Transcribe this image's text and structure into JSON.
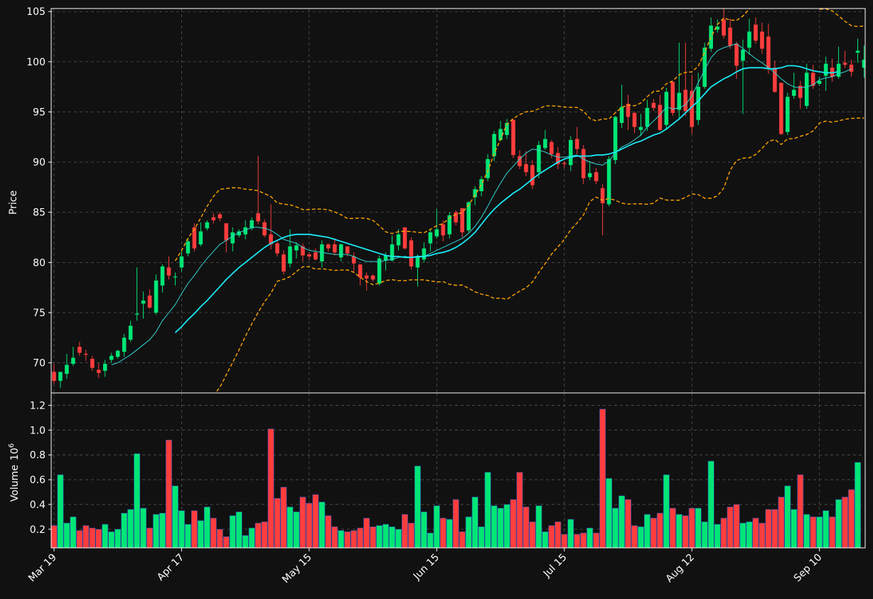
{
  "colors": {
    "background": "#111111",
    "up": "#00e676",
    "down": "#ff3d3d",
    "grid": "#555555",
    "axis": "#ffffff",
    "ma_fast": "#34d6d6",
    "ma_slow": "#19e8f5",
    "bollinger": "#ffa500"
  },
  "chart_data": [
    {
      "type": "candlestick",
      "ylabel": "Price",
      "ylim": [
        67,
        105.3
      ],
      "yticks": [
        70,
        75,
        80,
        85,
        90,
        95,
        100,
        105
      ],
      "xticks": [
        "Mar 19",
        "Apr 17",
        "May 15",
        "Jun 15",
        "Jul 15",
        "Aug 12",
        "Sep 10"
      ],
      "xtick_index": [
        0,
        20,
        40,
        60,
        80,
        100,
        120
      ],
      "grid": true,
      "legend": "none",
      "series_info": [
        "OHLC candles",
        "fast moving average",
        "slow moving average",
        "Bollinger upper band",
        "Bollinger lower band"
      ],
      "close": [
        68.2,
        69.1,
        69.8,
        70.5,
        71.0,
        70.8,
        69.5,
        69.0,
        69.9,
        70.7,
        71.2,
        72.5,
        73.7,
        74.9,
        76.2,
        75.5,
        78.2,
        79.6,
        78.7,
        78.6,
        80.6,
        82.1,
        81.4,
        83.1,
        84.0,
        84.2,
        84.4,
        82.2,
        83.0,
        83.1,
        83.5,
        84.2,
        84.1,
        82.7,
        81.8,
        80.9,
        79.1,
        81.6,
        81.7,
        80.7,
        80.6,
        80.3,
        81.8,
        81.4,
        81.0,
        81.8,
        80.9,
        79.9,
        78.5,
        78.4,
        78.3,
        80.4,
        80.7,
        81.8,
        82.8,
        81.4,
        79.6,
        80.6,
        81.4,
        83.0,
        83.3,
        82.7,
        84.7,
        84.0,
        83.0,
        86.0,
        87.3,
        88.3,
        90.3,
        92.8,
        93.3,
        93.9,
        90.7,
        89.6,
        89.0,
        87.7,
        91.7,
        92.3,
        90.8,
        89.8,
        89.8,
        92.2,
        91.3,
        88.4,
        88.9,
        88.1,
        85.9,
        90.3,
        94.5,
        95.5,
        94.5,
        93.5,
        93.5,
        95.4,
        95.4,
        93.2,
        97.0,
        94.9,
        96.9,
        95.1,
        93.5,
        97.5,
        101.4,
        103.6,
        103.5,
        102.6,
        101.6,
        99.6,
        101.2,
        103.0,
        102.1,
        101.3,
        99.3,
        97.0,
        92.8,
        96.5,
        97.2,
        96.4,
        98.9,
        97.6,
        98.1,
        99.8,
        98.5,
        99.8,
        99.7,
        99.0,
        101.1,
        100.2
      ],
      "open": [
        69.1,
        68.2,
        68.9,
        69.9,
        71.6,
        70.9,
        70.4,
        69.3,
        69.2,
        70.3,
        70.6,
        71.1,
        72.3,
        74.8,
        75.9,
        76.7,
        75.0,
        77.7,
        79.5,
        78.6,
        79.5,
        80.9,
        83.5,
        81.8,
        83.4,
        84.5,
        84.8,
        83.9,
        81.9,
        82.7,
        82.8,
        83.4,
        84.9,
        84.0,
        82.8,
        81.9,
        80.8,
        79.9,
        81.2,
        81.6,
        80.8,
        81.0,
        80.1,
        81.8,
        81.8,
        80.5,
        81.6,
        80.6,
        79.8,
        78.7,
        78.7,
        77.9,
        80.2,
        80.2,
        81.7,
        83.5,
        82.2,
        79.5,
        80.3,
        81.9,
        82.6,
        83.8,
        82.8,
        85.0,
        85.4,
        83.2,
        86.5,
        87.1,
        88.4,
        90.6,
        92.2,
        92.7,
        94.2,
        90.6,
        89.8,
        89.7,
        89.0,
        91.4,
        92.0,
        90.9,
        89.9,
        89.7,
        92.3,
        91.3,
        88.5,
        89.0,
        87.4,
        85.8,
        90.2,
        93.9,
        95.8,
        94.9,
        93.2,
        93.5,
        95.9,
        95.7,
        93.7,
        98.0,
        95.2,
        97.2,
        97.1,
        94.2,
        97.5,
        101.3,
        103.2,
        104.2,
        103.4,
        101.8,
        100.1,
        101.4,
        103.7,
        103.0,
        102.5,
        99.4,
        97.9,
        93.0,
        96.6,
        97.6,
        95.6,
        98.9,
        97.8,
        98.6,
        99.4,
        98.5,
        99.9,
        99.7,
        100.9,
        99.4
      ],
      "high": [
        69.9,
        69.1,
        70.9,
        71.6,
        72.1,
        71.3,
        70.7,
        70.0,
        70.3,
        71.0,
        71.3,
        72.9,
        74.2,
        79.5,
        77.1,
        77.3,
        78.8,
        79.8,
        80.6,
        79.0,
        81.1,
        82.4,
        83.9,
        84.0,
        84.2,
        84.9,
        85.0,
        83.9,
        83.5,
        83.3,
        84.2,
        84.5,
        90.6,
        84.3,
        85.8,
        82.1,
        81.2,
        83.3,
        82.0,
        81.9,
        81.0,
        81.4,
        82.2,
        81.9,
        82.4,
        81.9,
        81.6,
        81.0,
        79.8,
        79.0,
        78.8,
        80.7,
        81.0,
        82.7,
        83.3,
        83.5,
        82.5,
        80.8,
        82.0,
        83.3,
        85.3,
        84.2,
        85.0,
        85.2,
        85.4,
        86.1,
        87.6,
        88.6,
        90.8,
        93.1,
        94.1,
        94.3,
        94.3,
        91.2,
        91.1,
        90.2,
        92.1,
        93.2,
        92.2,
        91.5,
        90.1,
        92.6,
        93.5,
        91.7,
        90.1,
        89.4,
        87.8,
        90.6,
        94.6,
        97.7,
        96.7,
        95.0,
        94.8,
        96.2,
        96.3,
        96.7,
        97.4,
        98.0,
        101.9,
        101.9,
        98.7,
        98.9,
        101.9,
        104.4,
        104.2,
        105.6,
        104.3,
        102.0,
        102.2,
        104.3,
        104.4,
        103.9,
        103.8,
        100.1,
        97.9,
        96.9,
        98.9,
        98.1,
        99.8,
        99.7,
        98.5,
        100.5,
        100.3,
        101.5,
        101.1,
        100.2,
        102.3,
        101.6
      ],
      "low": [
        67.9,
        67.5,
        68.4,
        69.7,
        70.7,
        70.2,
        69.2,
        68.5,
        68.6,
        70.0,
        70.4,
        70.6,
        72.1,
        74.2,
        74.4,
        75.4,
        74.8,
        77.0,
        78.3,
        77.7,
        79.1,
        80.6,
        81.1,
        81.6,
        83.2,
        83.9,
        84.1,
        81.0,
        81.1,
        82.5,
        82.3,
        83.2,
        83.8,
        82.5,
        81.3,
        80.6,
        78.8,
        79.5,
        80.4,
        80.1,
        80.3,
        80.2,
        79.5,
        81.1,
        80.7,
        80.1,
        80.6,
        79.1,
        77.7,
        77.2,
        78.1,
        77.7,
        79.2,
        80.1,
        81.2,
        81.3,
        79.3,
        77.6,
        80.0,
        81.1,
        82.4,
        82.1,
        82.4,
        83.7,
        82.5,
        83.0,
        85.7,
        86.6,
        88.1,
        90.1,
        92.1,
        92.3,
        90.4,
        89.3,
        88.6,
        87.3,
        88.4,
        91.2,
        90.4,
        89.3,
        89.4,
        89.1,
        90.8,
        87.8,
        88.2,
        87.8,
        82.7,
        85.6,
        89.8,
        93.4,
        93.2,
        92.9,
        92.6,
        93.1,
        95.1,
        93.1,
        93.2,
        94.6,
        94.2,
        94.6,
        92.8,
        93.7,
        97.3,
        101.0,
        102.9,
        102.3,
        101.3,
        98.3,
        94.8,
        100.7,
        101.8,
        100.8,
        98.8,
        96.9,
        92.7,
        92.7,
        96.3,
        95.3,
        95.3,
        97.3,
        97.6,
        97.1,
        98.0,
        98.3,
        99.4,
        98.5,
        99.9,
        98.4
      ],
      "ma_fast": [
        null,
        null,
        null,
        null,
        null,
        null,
        null,
        null,
        null,
        69.8,
        70.0,
        70.4,
        70.8,
        71.3,
        71.8,
        72.3,
        73.1,
        74.2,
        75.0,
        75.8,
        76.9,
        77.9,
        78.7,
        79.6,
        80.4,
        81.1,
        81.8,
        82.2,
        82.6,
        83.0,
        83.2,
        83.5,
        83.5,
        83.4,
        83.2,
        82.8,
        82.3,
        82.1,
        81.9,
        81.5,
        81.2,
        81.1,
        81.0,
        80.9,
        80.8,
        80.8,
        80.8,
        80.6,
        80.3,
        80.1,
        80.1,
        80.1,
        80.2,
        80.3,
        80.5,
        80.6,
        80.5,
        80.5,
        80.6,
        80.9,
        81.2,
        81.5,
        81.8,
        82.1,
        82.4,
        82.9,
        83.6,
        84.5,
        85.6,
        86.8,
        87.9,
        88.9,
        89.6,
        90.3,
        90.9,
        91.3,
        91.2,
        91.0,
        90.7,
        90.5,
        90.5,
        90.6,
        90.7,
        90.3,
        90.0,
        89.8,
        89.7,
        90.1,
        90.9,
        91.5,
        91.8,
        92.2,
        92.7,
        93.5,
        94.1,
        94.7,
        95.5,
        95.3,
        95.4,
        95.7,
        96.6,
        97.9,
        99.2,
        100.4,
        101.1,
        101.4,
        101.6,
        101.8,
        101.3,
        100.8,
        100.3,
        99.9,
        99.4,
        98.9,
        98.3,
        97.8,
        97.5,
        97.4,
        97.5,
        97.7,
        98.2,
        98.4,
        98.5,
        98.8,
        99.0,
        99.3
      ],
      "ma_slow": [
        null,
        null,
        null,
        null,
        null,
        null,
        null,
        null,
        null,
        null,
        null,
        null,
        null,
        null,
        null,
        null,
        null,
        null,
        null,
        73.0,
        73.6,
        74.3,
        74.9,
        75.6,
        76.2,
        76.9,
        77.6,
        78.3,
        78.9,
        79.5,
        80.0,
        80.5,
        81.0,
        81.5,
        81.9,
        82.2,
        82.5,
        82.7,
        82.8,
        82.8,
        82.8,
        82.7,
        82.6,
        82.5,
        82.3,
        82.1,
        81.9,
        81.7,
        81.5,
        81.3,
        81.1,
        80.9,
        80.7,
        80.6,
        80.6,
        80.5,
        80.5,
        80.6,
        80.6,
        80.7,
        80.9,
        81.0,
        81.2,
        81.5,
        81.9,
        82.4,
        83.0,
        83.8,
        84.6,
        85.3,
        85.9,
        86.4,
        86.9,
        87.3,
        87.8,
        88.3,
        88.8,
        89.2,
        89.6,
        90.0,
        90.3,
        90.5,
        90.6,
        90.6,
        90.6,
        90.7,
        90.7,
        90.8,
        91.0,
        91.3,
        91.6,
        91.9,
        92.1,
        92.4,
        92.7,
        92.9,
        93.3,
        93.8,
        94.3,
        94.9,
        95.5,
        96.1,
        96.8,
        97.5,
        97.9,
        98.3,
        98.6,
        99.0,
        99.3,
        99.4,
        99.4,
        99.4,
        99.3,
        99.3,
        99.4,
        99.6,
        99.6,
        99.5,
        99.3,
        99.1,
        99.0,
        98.9,
        98.9,
        99.0
      ]
    },
    {
      "type": "bar",
      "ylabel": "Volume",
      "ylabel_exponent": "10^6",
      "ylim": [
        0.05,
        1.3
      ],
      "yticks": [
        0.2,
        0.4,
        0.6,
        0.8,
        1.0,
        1.2
      ],
      "grid": true,
      "values": [
        0.23,
        0.64,
        0.25,
        0.3,
        0.19,
        0.23,
        0.21,
        0.2,
        0.24,
        0.18,
        0.2,
        0.33,
        0.36,
        0.81,
        0.37,
        0.21,
        0.32,
        0.33,
        0.92,
        0.55,
        0.35,
        0.24,
        0.35,
        0.27,
        0.38,
        0.29,
        0.2,
        0.14,
        0.31,
        0.34,
        0.15,
        0.21,
        0.25,
        0.26,
        1.01,
        0.45,
        0.54,
        0.38,
        0.34,
        0.46,
        0.41,
        0.48,
        0.42,
        0.31,
        0.22,
        0.19,
        0.18,
        0.19,
        0.21,
        0.29,
        0.22,
        0.23,
        0.24,
        0.22,
        0.2,
        0.32,
        0.25,
        0.71,
        0.34,
        0.17,
        0.39,
        0.29,
        0.28,
        0.44,
        0.18,
        0.3,
        0.46,
        0.22,
        0.66,
        0.39,
        0.37,
        0.4,
        0.44,
        0.66,
        0.38,
        0.26,
        0.39,
        0.18,
        0.23,
        0.26,
        0.16,
        0.28,
        0.16,
        0.17,
        0.21,
        0.17,
        1.17,
        0.61,
        0.37,
        0.47,
        0.44,
        0.23,
        0.22,
        0.32,
        0.29,
        0.33,
        0.64,
        0.37,
        0.32,
        0.31,
        0.37,
        0.37,
        0.26,
        0.75,
        0.24,
        0.29,
        0.38,
        0.4,
        0.25,
        0.26,
        0.29,
        0.25,
        0.36,
        0.36,
        0.46,
        0.55,
        0.36,
        0.64,
        0.32,
        0.3,
        0.3,
        0.35,
        0.3,
        0.44,
        0.46,
        0.52,
        0.74
      ]
    }
  ]
}
